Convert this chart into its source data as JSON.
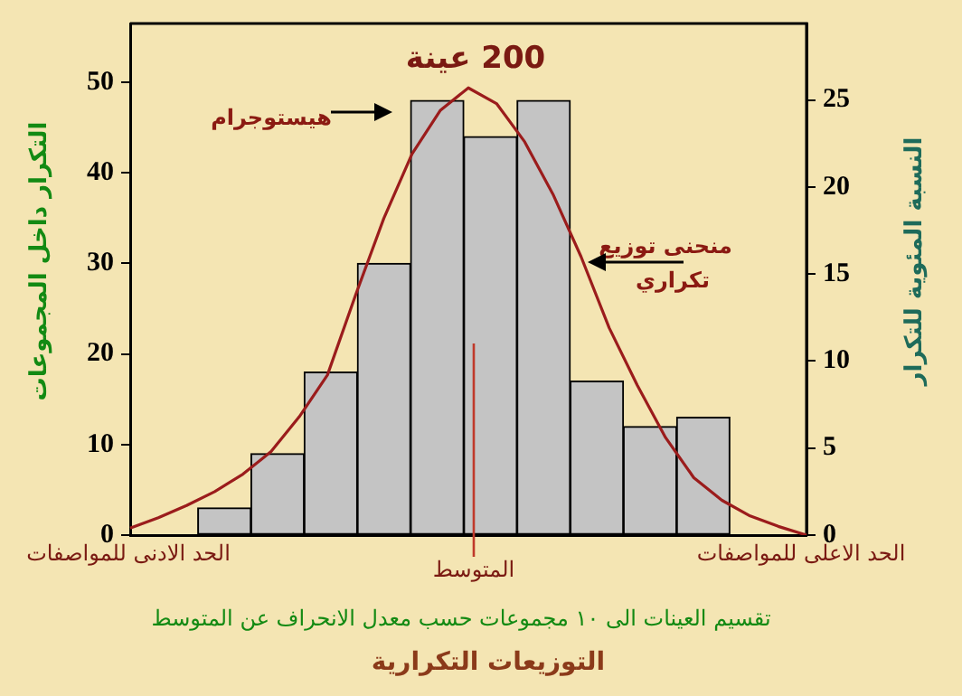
{
  "chart_data": [
    {
      "type": "bar",
      "title": "200 عينة",
      "xlabel": "تقسيم العينات الى ١٠ مجموعات حسب معدل الانحراف عن المتوسط",
      "ylabel": "التكرار داخل المجموعات",
      "categories": [
        null,
        null,
        null,
        null,
        null,
        null,
        null,
        null,
        null,
        null
      ],
      "values": [
        3,
        9,
        18,
        30,
        48,
        44,
        48,
        17,
        12,
        13
      ],
      "color": "#c4c4c4",
      "ylim": [
        0,
        56.5
      ],
      "yticks": [
        0,
        10,
        20,
        30,
        40,
        50
      ],
      "annotations": [
        "هيستوجرام",
        "منحنى توزيع تكراري",
        "الحد الادنى للمواصفات",
        "الحد الاعلى للمواصفات",
        "المتوسط",
        "التوزيعات التكرارية"
      ]
    },
    {
      "type": "line",
      "ylabel": "النسبة المئوية للتكرار",
      "categories": [
        null,
        null,
        null,
        null,
        null,
        null,
        null,
        null,
        null,
        null,
        null,
        null,
        null,
        null,
        null,
        null,
        null,
        null,
        null,
        null,
        null,
        null,
        null,
        null,
        null
      ],
      "series": [
        {
          "color": "#9b1c1c",
          "values": [
            0.4,
            1.0,
            1.7,
            2.5,
            3.5,
            4.8,
            6.8,
            9.2,
            13.8,
            18.2,
            21.9,
            24.4,
            25.7,
            24.8,
            22.6,
            19.6,
            16.0,
            11.9,
            8.6,
            5.6,
            3.3,
            2.0,
            1.1,
            0.5,
            0
          ]
        }
      ],
      "ylim": [
        0,
        29.4
      ],
      "yticks": [
        0,
        5,
        10,
        15,
        20,
        25
      ],
      "marker": "none"
    }
  ]
}
